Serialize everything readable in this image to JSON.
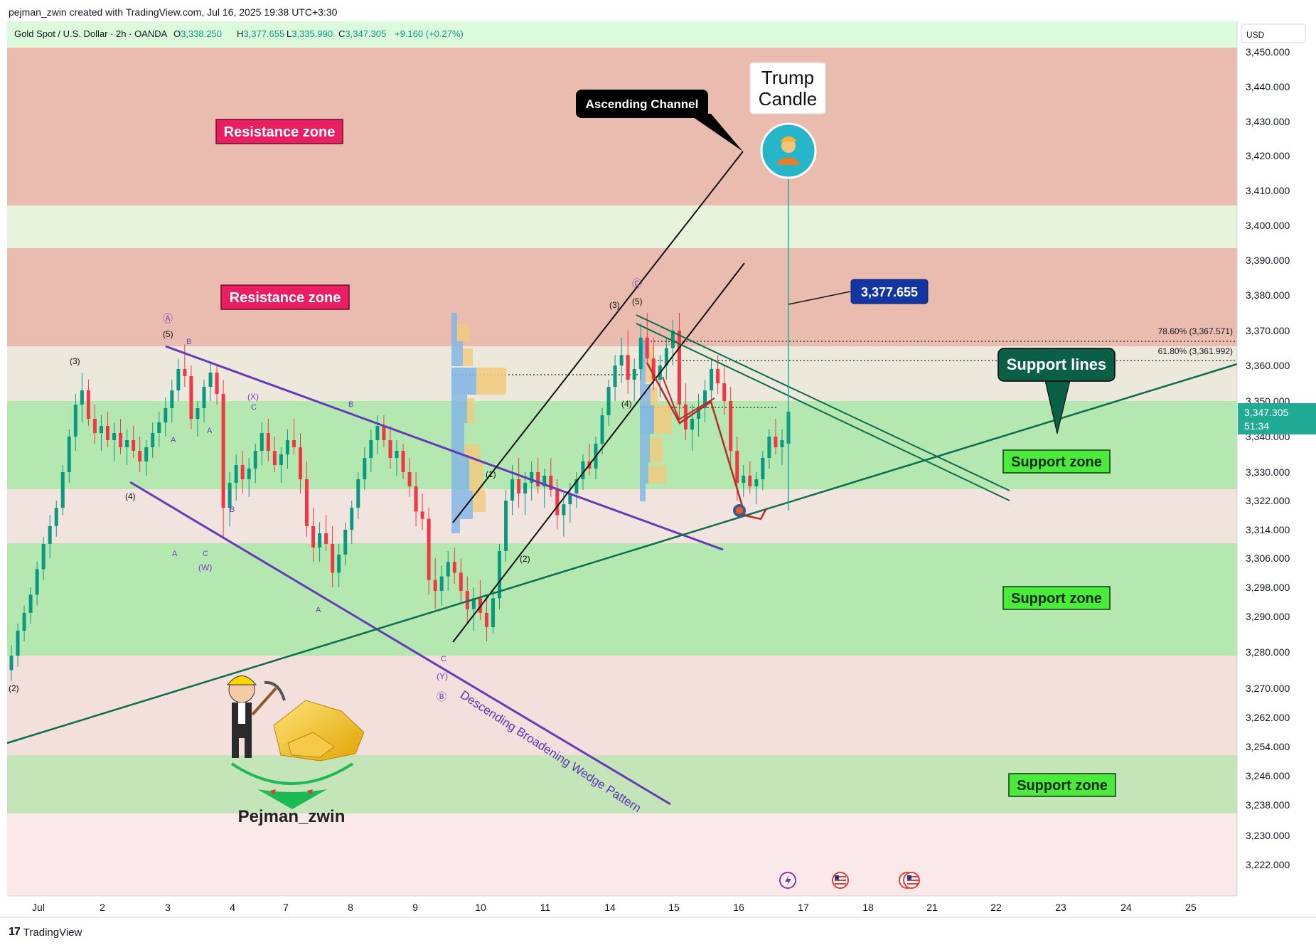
{
  "attribution": "pejman_zwin created with TradingView.com, Jul 16, 2025 19:38 UTC+3:30",
  "footer": {
    "logo_icon": "tradingview-logo-icon",
    "logo_text": "TradingView"
  },
  "symbol_header": {
    "symbol": "Gold Spot / U.S. Dollar · 2h · OANDA",
    "open_label": "O",
    "open": "3,338.250",
    "high_label": "H",
    "high": "3,377.655",
    "low_label": "L",
    "low": "3,335.990",
    "close_label": "C",
    "close": "3,347.305",
    "change": "+9.160 (+0.27%)"
  },
  "price_axis": {
    "currency": "USD",
    "last_price": "3,347.305",
    "countdown": "51:34"
  },
  "colors": {
    "resistance_zone": "#e8a79a",
    "support_zone": "#a9e6a0",
    "last_price_tag": "#22ab94",
    "wedge": "#673ab7",
    "support_line": "#0b6e4f",
    "candle_up": "#089981",
    "candle_down": "#f23645"
  },
  "labels": {
    "resistance_zone_1": "Resistance zone",
    "resistance_zone_2": "Resistance zone",
    "support_zone_1": "Support zone",
    "support_zone_2": "Support zone",
    "support_zone_3": "Support zone",
    "ascending_channel": "Ascending Channel",
    "trump_candle_line1": "Trump",
    "trump_candle_line2": "Candle",
    "support_lines": "Support lines",
    "high_callout": "3,377.655",
    "wedge_label": "Descending Broadening Wedge Pattern",
    "brand": "Pejman_zwin",
    "fib_786": "78.60% (3,367.571)",
    "fib_618": "61.80% (3,361.992)"
  },
  "wave_labels": [
    "(2)",
    "(3)",
    "(4)",
    "(5)",
    "Ⓐ",
    "A",
    "B",
    "C",
    "(W)",
    "(X)",
    "(Y)",
    "Ⓑ",
    "Ⓒ",
    "(1)",
    "(2)",
    "(3)",
    "(4)",
    "(5)"
  ],
  "event_icons": [
    "lightning-event-icon",
    "us-flag-event-icon",
    "us-flag-event-icon"
  ],
  "chart_data": {
    "type": "candlestick",
    "title": "Gold Spot / U.S. Dollar · 2h · OANDA",
    "xlabel": "",
    "ylabel": "",
    "y_ticks": [
      "3,450.000",
      "3,440.000",
      "3,430.000",
      "3,420.000",
      "3,410.000",
      "3,400.000",
      "3,390.000",
      "3,380.000",
      "3,370.000",
      "3,360.000",
      "3,350.000",
      "3,340.000",
      "3,330.000",
      "3,322.000",
      "3,314.000",
      "3,306.000",
      "3,298.000",
      "3,290.000",
      "3,280.000",
      "3,270.000",
      "3,262.000",
      "3,254.000",
      "3,246.000",
      "3,238.000",
      "3,230.000",
      "3,222.000"
    ],
    "x_ticks": [
      "Jul",
      "2",
      "3",
      "4",
      "7",
      "8",
      "9",
      "10",
      "11",
      "14",
      "15",
      "16",
      "17",
      "18",
      "21",
      "22",
      "23",
      "24",
      "25"
    ],
    "zones": [
      {
        "name": "Resistance zone",
        "from": 3406,
        "to": 3451,
        "kind": "resistance"
      },
      {
        "name": "Resistance zone",
        "from": 3365,
        "to": 3393,
        "kind": "resistance"
      },
      {
        "name": "Support zone",
        "from": 3325,
        "to": 3350,
        "kind": "support"
      },
      {
        "name": "Support zone",
        "from": 3281,
        "to": 3310,
        "kind": "support"
      },
      {
        "name": "Support zone",
        "from": 3235,
        "to": 3251,
        "kind": "support"
      }
    ],
    "fib_levels": [
      {
        "label": "78.60%",
        "value": 3367.571
      },
      {
        "label": "61.80%",
        "value": 3361.992
      }
    ],
    "last_close": 3347.305,
    "session_high": 3377.655,
    "candles": [
      [
        3275,
        3282,
        3272,
        3279
      ],
      [
        3279,
        3288,
        3276,
        3286
      ],
      [
        3286,
        3293,
        3283,
        3291
      ],
      [
        3291,
        3298,
        3288,
        3296
      ],
      [
        3296,
        3305,
        3293,
        3303
      ],
      [
        3303,
        3312,
        3300,
        3310
      ],
      [
        3310,
        3318,
        3306,
        3315
      ],
      [
        3315,
        3322,
        3312,
        3320
      ],
      [
        3320,
        3332,
        3318,
        3330
      ],
      [
        3330,
        3342,
        3327,
        3340
      ],
      [
        3340,
        3352,
        3336,
        3349
      ],
      [
        3349,
        3358,
        3344,
        3353
      ],
      [
        3353,
        3356,
        3343,
        3345
      ],
      [
        3345,
        3349,
        3338,
        3341
      ],
      [
        3341,
        3346,
        3336,
        3343
      ],
      [
        3343,
        3347,
        3337,
        3339
      ],
      [
        3339,
        3344,
        3333,
        3341
      ],
      [
        3341,
        3345,
        3335,
        3337
      ],
      [
        3337,
        3342,
        3332,
        3339
      ],
      [
        3339,
        3343,
        3334,
        3336
      ],
      [
        3336,
        3340,
        3330,
        3333
      ],
      [
        3333,
        3339,
        3329,
        3337
      ],
      [
        3337,
        3344,
        3334,
        3341
      ],
      [
        3341,
        3347,
        3337,
        3344
      ],
      [
        3344,
        3351,
        3340,
        3348
      ],
      [
        3348,
        3356,
        3344,
        3353
      ],
      [
        3353,
        3362,
        3350,
        3359
      ],
      [
        3359,
        3366,
        3354,
        3357
      ],
      [
        3357,
        3360,
        3342,
        3345
      ],
      [
        3345,
        3350,
        3340,
        3348
      ],
      [
        3348,
        3356,
        3344,
        3354
      ],
      [
        3354,
        3361,
        3350,
        3358
      ],
      [
        3358,
        3360,
        3349,
        3352
      ],
      [
        3352,
        3356,
        3312,
        3320
      ],
      [
        3320,
        3330,
        3315,
        3327
      ],
      [
        3327,
        3335,
        3322,
        3332
      ],
      [
        3332,
        3336,
        3324,
        3328
      ],
      [
        3328,
        3334,
        3323,
        3331
      ],
      [
        3331,
        3338,
        3327,
        3336
      ],
      [
        3336,
        3344,
        3332,
        3341
      ],
      [
        3341,
        3345,
        3333,
        3336
      ],
      [
        3336,
        3340,
        3330,
        3332
      ],
      [
        3332,
        3337,
        3327,
        3335
      ],
      [
        3335,
        3342,
        3331,
        3339
      ],
      [
        3339,
        3345,
        3335,
        3337
      ],
      [
        3337,
        3341,
        3324,
        3328
      ],
      [
        3328,
        3333,
        3312,
        3315
      ],
      [
        3315,
        3320,
        3305,
        3309
      ],
      [
        3309,
        3316,
        3305,
        3313
      ],
      [
        3313,
        3318,
        3308,
        3310
      ],
      [
        3310,
        3315,
        3298,
        3302
      ],
      [
        3302,
        3310,
        3298,
        3307
      ],
      [
        3307,
        3316,
        3304,
        3314
      ],
      [
        3314,
        3322,
        3310,
        3320
      ],
      [
        3320,
        3330,
        3317,
        3328
      ],
      [
        3328,
        3337,
        3325,
        3334
      ],
      [
        3334,
        3342,
        3330,
        3339
      ],
      [
        3339,
        3346,
        3335,
        3343
      ],
      [
        3343,
        3346,
        3337,
        3339
      ],
      [
        3339,
        3343,
        3331,
        3334
      ],
      [
        3334,
        3339,
        3329,
        3336
      ],
      [
        3336,
        3338,
        3328,
        3330
      ],
      [
        3330,
        3334,
        3323,
        3326
      ],
      [
        3326,
        3330,
        3315,
        3319
      ],
      [
        3319,
        3324,
        3314,
        3317
      ],
      [
        3317,
        3320,
        3296,
        3300
      ],
      [
        3300,
        3306,
        3292,
        3297
      ],
      [
        3297,
        3304,
        3293,
        3301
      ],
      [
        3301,
        3308,
        3297,
        3305
      ],
      [
        3305,
        3309,
        3299,
        3302
      ],
      [
        3302,
        3306,
        3294,
        3297
      ],
      [
        3297,
        3301,
        3288,
        3292
      ],
      [
        3292,
        3298,
        3286,
        3295
      ],
      [
        3295,
        3300,
        3289,
        3291
      ],
      [
        3291,
        3296,
        3283,
        3287
      ],
      [
        3287,
        3297,
        3285,
        3295
      ],
      [
        3295,
        3310,
        3292,
        3308
      ],
      [
        3308,
        3325,
        3305,
        3322
      ],
      [
        3322,
        3332,
        3318,
        3328
      ],
      [
        3328,
        3334,
        3320,
        3324
      ],
      [
        3324,
        3330,
        3318,
        3327
      ],
      [
        3327,
        3333,
        3322,
        3330
      ],
      [
        3330,
        3334,
        3324,
        3326
      ],
      [
        3326,
        3331,
        3320,
        3329
      ],
      [
        3329,
        3334,
        3323,
        3325
      ],
      [
        3325,
        3328,
        3314,
        3318
      ],
      [
        3318,
        3324,
        3312,
        3321
      ],
      [
        3321,
        3327,
        3316,
        3324
      ],
      [
        3324,
        3330,
        3320,
        3328
      ],
      [
        3328,
        3335,
        3325,
        3333
      ],
      [
        3333,
        3338,
        3329,
        3331
      ],
      [
        3331,
        3340,
        3328,
        3338
      ],
      [
        3338,
        3348,
        3335,
        3346
      ],
      [
        3346,
        3356,
        3343,
        3354
      ],
      [
        3354,
        3363,
        3350,
        3360
      ],
      [
        3360,
        3368,
        3355,
        3363
      ],
      [
        3363,
        3370,
        3352,
        3356
      ],
      [
        3356,
        3362,
        3350,
        3359
      ],
      [
        3359,
        3372,
        3356,
        3368
      ],
      [
        3368,
        3375,
        3360,
        3362
      ],
      [
        3362,
        3368,
        3353,
        3356
      ],
      [
        3356,
        3363,
        3351,
        3360
      ],
      [
        3360,
        3368,
        3356,
        3365
      ],
      [
        3365,
        3373,
        3360,
        3370
      ],
      [
        3370,
        3375,
        3345,
        3349
      ],
      [
        3349,
        3355,
        3339,
        3342
      ],
      [
        3342,
        3349,
        3336,
        3345
      ],
      [
        3345,
        3352,
        3340,
        3348
      ],
      [
        3348,
        3356,
        3344,
        3353
      ],
      [
        3353,
        3362,
        3350,
        3359
      ],
      [
        3359,
        3363,
        3352,
        3355
      ],
      [
        3355,
        3360,
        3346,
        3350
      ],
      [
        3350,
        3354,
        3332,
        3336
      ],
      [
        3336,
        3340,
        3322,
        3327
      ],
      [
        3327,
        3332,
        3323,
        3329
      ],
      [
        3329,
        3333,
        3324,
        3326
      ],
      [
        3326,
        3330,
        3321,
        3328
      ],
      [
        3328,
        3336,
        3325,
        3334
      ],
      [
        3334,
        3342,
        3331,
        3340
      ],
      [
        3340,
        3345,
        3335,
        3337
      ],
      [
        3337,
        3342,
        3332,
        3339
      ],
      [
        3338,
        3378,
        3336,
        3347
      ]
    ]
  }
}
